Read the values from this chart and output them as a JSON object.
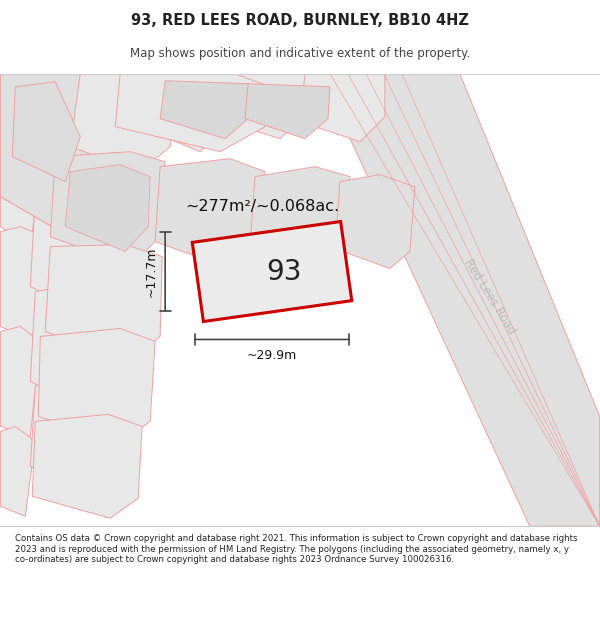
{
  "title": "93, RED LEES ROAD, BURNLEY, BB10 4HZ",
  "subtitle": "Map shows position and indicative extent of the property.",
  "footer": "Contains OS data © Crown copyright and database right 2021. This information is subject to Crown copyright and database rights 2023 and is reproduced with the permission of HM Land Registry. The polygons (including the associated geometry, namely x, y co-ordinates) are subject to Crown copyright and database rights 2023 Ordnance Survey 100026316.",
  "title_color": "#222222",
  "subtitle_color": "#444444",
  "footer_color": "#222222",
  "road_label": "Red Lees Road",
  "area_label": "~277m²/~0.068ac.",
  "width_label": "~29.9m",
  "height_label": "~17.7m",
  "property_number": "93",
  "light_red": "#f0a0a0",
  "red": "#cc0000",
  "map_bg": "#f2f2f2",
  "block_fill": "#e8e8e8",
  "block_fill2": "#e0e0e0",
  "road_fill": "#e4e4e4",
  "dim_color": "#444444"
}
